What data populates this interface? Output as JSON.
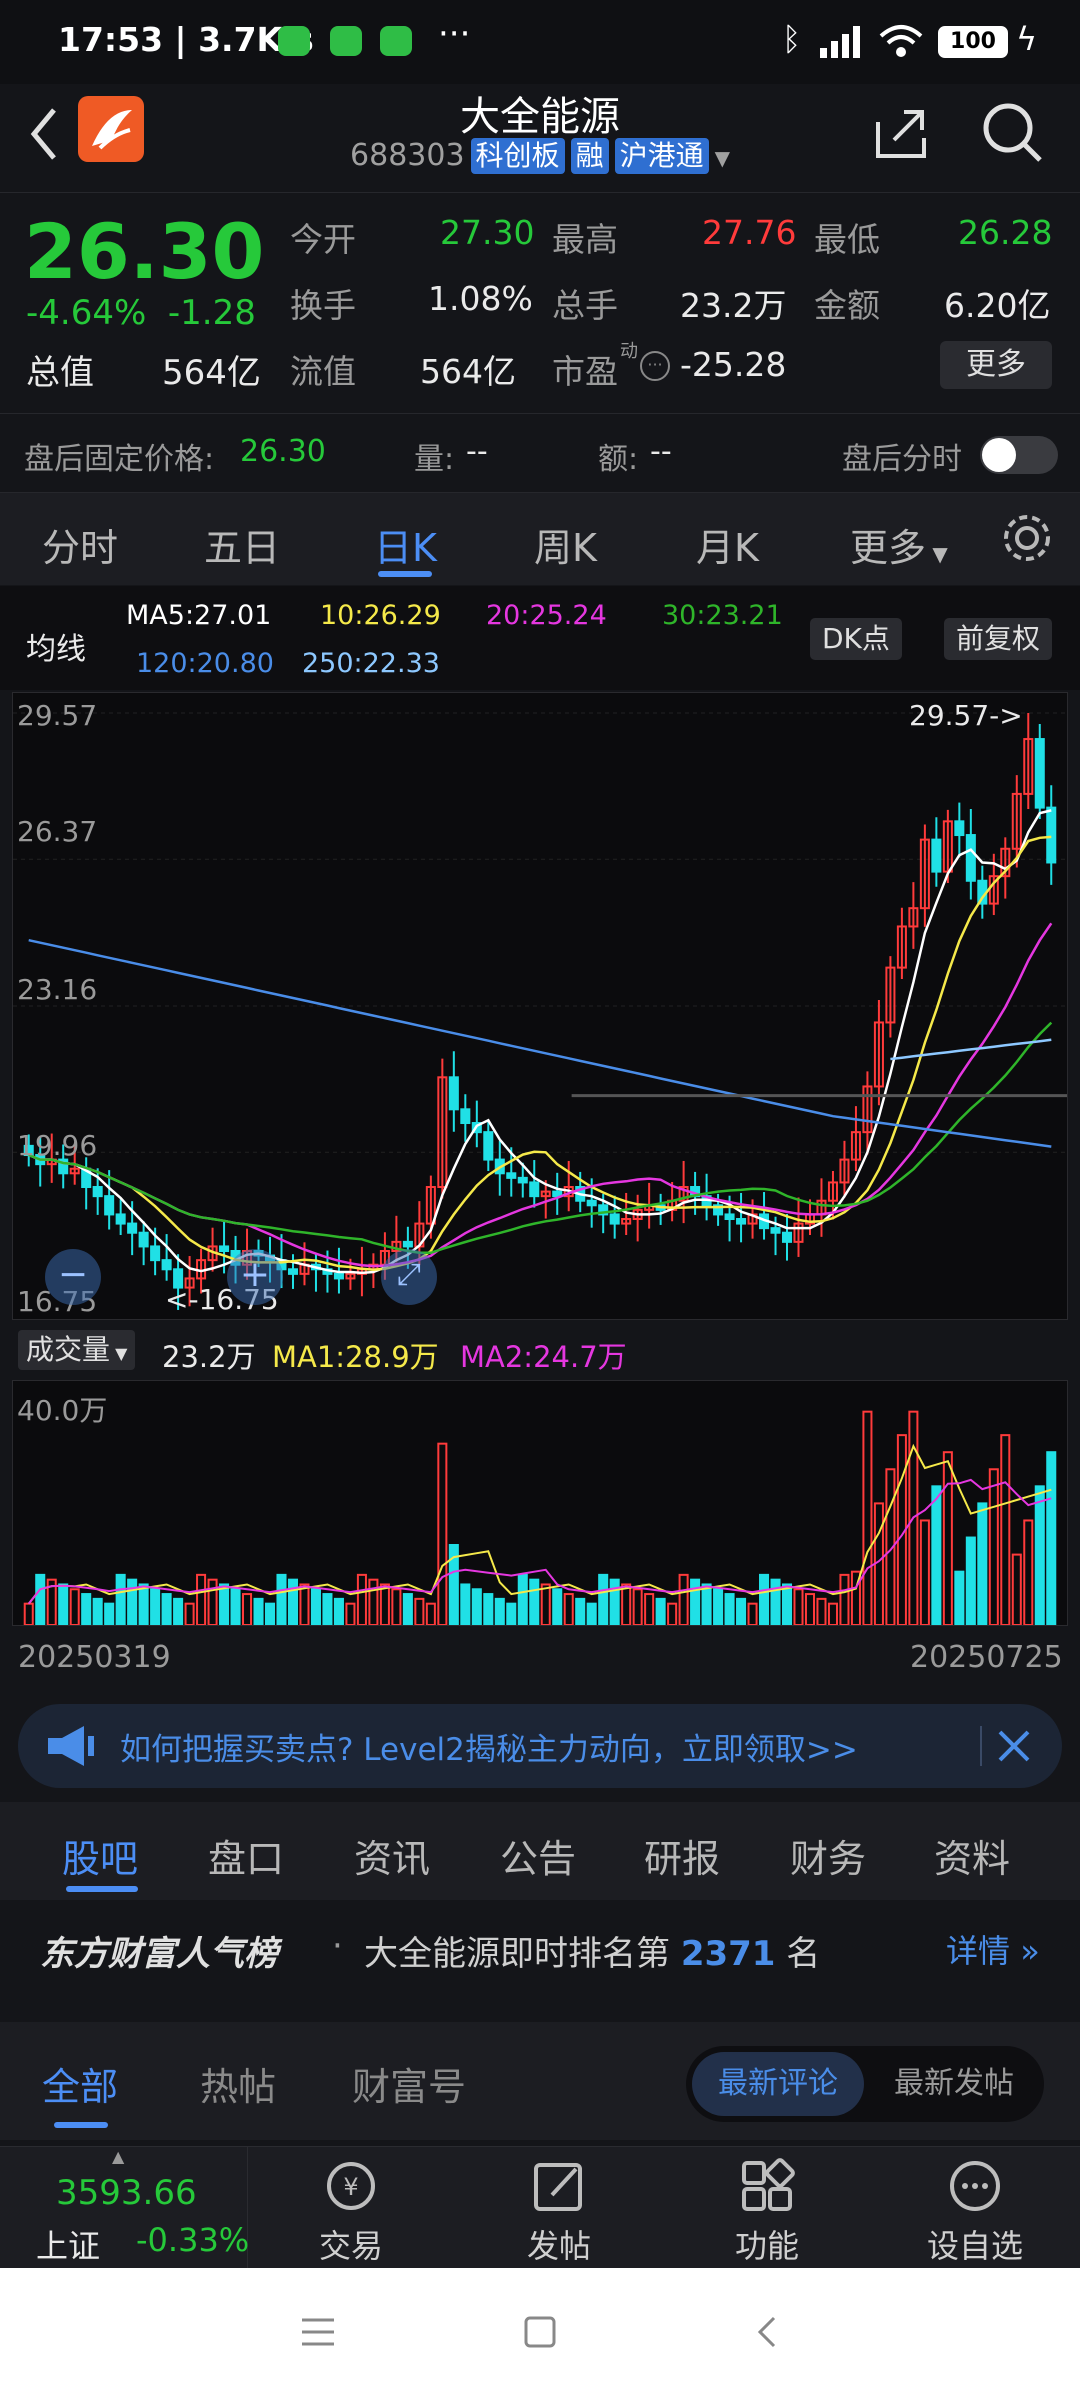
{
  "status": {
    "time": "17:53",
    "speed": "3.7K/s",
    "battery": "100"
  },
  "header": {
    "title": "大全能源",
    "code": "688303",
    "tags": [
      "科创板",
      "融",
      "沪港通"
    ]
  },
  "quote": {
    "price": "26.30",
    "change_pct": "-4.64%",
    "change": "-1.28",
    "open_label": "今开",
    "open": "27.30",
    "high_label": "最高",
    "high": "27.76",
    "low_label": "最低",
    "low": "26.28",
    "turnover_label": "换手",
    "turnover": "1.08%",
    "volume_label": "总手",
    "volume": "23.2万",
    "amount_label": "金额",
    "amount": "6.20亿",
    "mktcap_label": "总值",
    "mktcap": "564亿",
    "float_label": "流值",
    "float": "564亿",
    "pe_label": "市盈",
    "pe_sup": "动",
    "pe": "-25.28",
    "more_btn": "更多"
  },
  "afterhours": {
    "label": "盘后固定价格:",
    "price": "26.30",
    "vol_label": "量:",
    "vol": "--",
    "amt_label": "额:",
    "amt": "--",
    "toggle_label": "盘后分时"
  },
  "chart_tabs": [
    "分时",
    "五日",
    "日K",
    "周K",
    "月K",
    "更多"
  ],
  "ma": {
    "label": "均线",
    "ma5": "MA5:27.01",
    "ma10": "10:26.29",
    "ma20": "20:25.24",
    "ma30": "30:23.21",
    "ma120": "120:20.80",
    "ma250": "250:22.33",
    "dk_btn": "DK点",
    "fq_btn": "前复权",
    "color_ma5": "#ffffff",
    "color_ma10": "#f5e94a",
    "color_ma20": "#e537e0",
    "color_ma30": "#2fb52a",
    "color_ma120": "#4a8de8",
    "color_ma250": "#8dc8ff"
  },
  "kchart": {
    "y_labels": [
      "29.57",
      "26.37",
      "23.16",
      "19.96",
      "16.75"
    ],
    "max_marker": "29.57->",
    "min_marker": "<-16.75"
  },
  "volume": {
    "selector": "成交量",
    "value": "23.2万",
    "ma1": "MA1:28.9万",
    "ma2": "MA2:24.7万",
    "y_label": "40.0万",
    "date_start": "20250319",
    "date_end": "20250725"
  },
  "chart_data": {
    "type": "candlestick",
    "ylim": [
      16.75,
      29.57
    ],
    "x_range": [
      "20250319",
      "20250725"
    ],
    "series_lines": [
      "MA5",
      "MA10",
      "MA20",
      "MA30",
      "MA120",
      "MA250"
    ],
    "max": 29.57,
    "min": 16.75,
    "last_close": 26.3
  },
  "banner": {
    "text": "如何把握买卖点? Level2揭秘主力动向，立即领取>>"
  },
  "info_tabs": [
    "股吧",
    "盘口",
    "资讯",
    "公告",
    "研报",
    "财务",
    "资料"
  ],
  "rank": {
    "brand": "东方财富人气榜",
    "dot": "·",
    "text": "大全能源即时排名第",
    "rank": "2371",
    "suffix": "名",
    "detail": "详情"
  },
  "forum_tabs": [
    "全部",
    "热帖",
    "财富号"
  ],
  "forum_sort": [
    "最新评论",
    "最新发帖"
  ],
  "bottom_nav": {
    "index_value": "3593.66",
    "index_name": "上证",
    "index_change": "-0.33%",
    "items": [
      "交易",
      "发帖",
      "功能",
      "设自选"
    ]
  }
}
